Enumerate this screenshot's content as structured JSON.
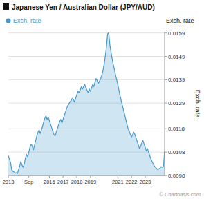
{
  "chart_data": {
    "type": "area",
    "title": "Japanese Yen / Australian Dollar (JPY/AUD)",
    "y_label": "Exch. rate",
    "annotations": [
      "© Chartoasis.com"
    ],
    "grid": true,
    "legend": "top-left",
    "ylim": [
      0.0098,
      0.01595
    ],
    "yticks": [
      0.0098,
      0.0108,
      0.0118,
      0.0129,
      0.0139,
      0.0149,
      0.0159
    ],
    "categories": [
      "2013",
      null,
      null,
      null,
      null,
      null,
      null,
      null,
      null,
      null,
      null,
      null,
      null,
      null,
      null,
      null,
      null,
      null,
      "Sep",
      null,
      null,
      null,
      null,
      null,
      null,
      null,
      null,
      null,
      null,
      null,
      null,
      null,
      null,
      null,
      null,
      null,
      "2016",
      null,
      null,
      null,
      null,
      null,
      null,
      null,
      null,
      null,
      null,
      null,
      "2017",
      null,
      null,
      null,
      null,
      null,
      null,
      null,
      null,
      null,
      null,
      null,
      "2018",
      null,
      null,
      null,
      null,
      null,
      null,
      null,
      null,
      null,
      null,
      null,
      "2019",
      null,
      null,
      null,
      null,
      null,
      null,
      null,
      null,
      null,
      null,
      null,
      null,
      null,
      null,
      null,
      null,
      null,
      null,
      null,
      null,
      null,
      null,
      null,
      "2021",
      null,
      null,
      null,
      null,
      null,
      null,
      null,
      null,
      null,
      null,
      null,
      "2022",
      null,
      null,
      null,
      null,
      null,
      null,
      null,
      null,
      null,
      null,
      null,
      "2023",
      null,
      null,
      null,
      null,
      null,
      null,
      null,
      null,
      null,
      null,
      null,
      null,
      null,
      null,
      null,
      null,
      null
    ],
    "series": [
      {
        "name": "Exch. rate",
        "color": "#4499cc",
        "values": [
          0.01065,
          0.0105,
          0.01035,
          0.01005,
          0.00998,
          0.00995,
          0.0099,
          0.00992,
          0.00988,
          0.01005,
          0.0102,
          0.0104,
          0.01025,
          0.01015,
          0.0103,
          0.01055,
          0.0107,
          0.0106,
          0.0108,
          0.011,
          0.01115,
          0.01105,
          0.0109,
          0.0111,
          0.0113,
          0.0115,
          0.01165,
          0.01175,
          0.0116,
          0.01175,
          0.0119,
          0.0121,
          0.01225,
          0.01235,
          0.0122,
          0.0123,
          0.01215,
          0.012,
          0.01185,
          0.0117,
          0.01155,
          0.0115,
          0.01165,
          0.0118,
          0.01195,
          0.0121,
          0.0122,
          0.01205,
          0.0122,
          0.01235,
          0.0125,
          0.01265,
          0.01278,
          0.01285,
          0.01295,
          0.013,
          0.0131,
          0.01305,
          0.01295,
          0.0131,
          0.01325,
          0.0134,
          0.01335,
          0.01345,
          0.0136,
          0.0135,
          0.0136,
          0.0137,
          0.01355,
          0.01345,
          0.01335,
          0.0135,
          0.0134,
          0.01355,
          0.0137,
          0.0136,
          0.0138,
          0.01395,
          0.01385,
          0.01375,
          0.01385,
          0.01395,
          0.0141,
          0.0143,
          0.01455,
          0.0149,
          0.0153,
          0.01585,
          0.01592,
          0.0154,
          0.0151,
          0.0148,
          0.01455,
          0.01435,
          0.0141,
          0.0139,
          0.0137,
          0.01345,
          0.0132,
          0.013,
          0.0128,
          0.0126,
          0.0124,
          0.0122,
          0.012,
          0.0118,
          0.0117,
          0.01155,
          0.01145,
          0.01155,
          0.01165,
          0.01155,
          0.0114,
          0.01125,
          0.0111,
          0.01095,
          0.01105,
          0.0112,
          0.0113,
          0.01115,
          0.011,
          0.01085,
          0.01095,
          0.0108,
          0.01065,
          0.0105,
          0.0104,
          0.0103,
          0.0102,
          0.01015,
          0.0101,
          0.01005,
          0.01008,
          0.01012,
          0.01018,
          0.01015,
          0.0102,
          0.01085
        ]
      }
    ]
  }
}
